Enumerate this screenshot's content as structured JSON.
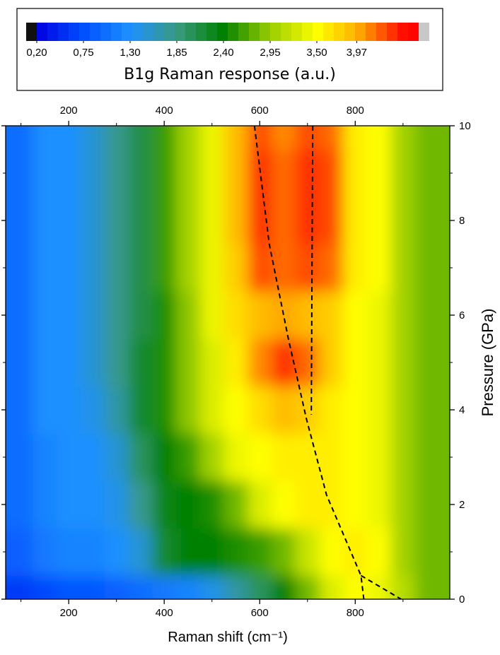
{
  "chart_data": {
    "type": "heatmap",
    "xlabel": "Raman shift (cm⁻¹)",
    "ylabel": "Pressure (GPa)",
    "colorbar_label": "B1g Raman response (a.u.)",
    "x": [
      100,
      150,
      200,
      250,
      300,
      350,
      400,
      450,
      500,
      550,
      600,
      650,
      700,
      750,
      800,
      850,
      900,
      950
    ],
    "y": [
      0,
      1,
      2,
      3,
      4,
      5,
      6,
      7,
      8,
      9,
      10
    ],
    "z": [
      [
        0.6,
        0.7,
        0.8,
        0.8,
        0.9,
        1.0,
        1.1,
        1.2,
        1.4,
        1.7,
        2.0,
        2.4,
        2.8,
        3.3,
        3.5,
        3.4,
        3.1,
        2.8
      ],
      [
        0.9,
        1.1,
        1.2,
        1.2,
        1.3,
        1.5,
        2.2,
        2.4,
        2.4,
        2.5,
        2.6,
        2.8,
        3.2,
        3.5,
        3.6,
        3.5,
        3.0,
        2.8
      ],
      [
        1.0,
        1.2,
        1.3,
        1.3,
        1.4,
        1.8,
        2.3,
        2.4,
        2.5,
        2.8,
        3.3,
        3.5,
        3.6,
        3.6,
        3.5,
        3.4,
        3.0,
        2.8
      ],
      [
        1.0,
        1.2,
        1.3,
        1.3,
        1.5,
        2.0,
        2.4,
        2.6,
        3.0,
        3.4,
        3.5,
        3.6,
        3.6,
        3.6,
        3.5,
        3.4,
        3.0,
        2.8
      ],
      [
        1.0,
        1.3,
        1.3,
        1.4,
        1.7,
        2.2,
        2.5,
        2.9,
        3.3,
        3.5,
        3.7,
        3.9,
        3.8,
        3.6,
        3.5,
        3.4,
        3.0,
        2.8
      ],
      [
        1.0,
        1.3,
        1.3,
        1.5,
        1.8,
        2.2,
        2.5,
        2.9,
        3.3,
        3.6,
        4.1,
        4.4,
        4.2,
        3.8,
        3.5,
        3.4,
        3.0,
        2.8
      ],
      [
        1.0,
        1.3,
        1.3,
        1.5,
        1.8,
        2.1,
        2.5,
        2.9,
        3.4,
        3.7,
        3.9,
        4.0,
        3.9,
        3.8,
        3.5,
        3.4,
        3.0,
        2.8
      ],
      [
        1.0,
        1.3,
        1.3,
        1.5,
        1.8,
        2.1,
        2.6,
        3.0,
        3.4,
        3.8,
        4.3,
        4.2,
        4.3,
        4.2,
        3.6,
        3.5,
        3.0,
        2.8
      ],
      [
        1.0,
        1.3,
        1.3,
        1.5,
        1.8,
        2.1,
        2.6,
        3.0,
        3.4,
        3.9,
        4.4,
        4.2,
        4.4,
        4.3,
        3.6,
        3.5,
        3.0,
        2.8
      ],
      [
        1.0,
        1.3,
        1.3,
        1.5,
        1.8,
        2.1,
        2.6,
        3.0,
        3.4,
        3.9,
        4.4,
        4.2,
        4.4,
        4.3,
        3.6,
        3.5,
        3.0,
        2.8
      ],
      [
        1.0,
        1.3,
        1.3,
        1.5,
        1.8,
        2.1,
        2.6,
        3.0,
        3.4,
        3.9,
        4.3,
        4.1,
        4.3,
        4.2,
        3.6,
        3.5,
        3.0,
        2.8
      ]
    ],
    "xlim": [
      68,
      998
    ],
    "ylim": [
      0,
      10
    ],
    "xticks": [
      200,
      400,
      600,
      800
    ],
    "xminor": [
      100,
      300,
      500,
      700,
      900
    ],
    "yticks": [
      0,
      2,
      4,
      6,
      8,
      10
    ],
    "yminor": [
      1,
      3,
      5,
      7,
      9
    ],
    "clim": [
      0.2,
      4.7
    ],
    "cticks": [
      {
        "value": 0.2,
        "label": "0,20"
      },
      {
        "value": 0.75,
        "label": "0,75"
      },
      {
        "value": 1.3,
        "label": "1,30"
      },
      {
        "value": 1.85,
        "label": "1,85"
      },
      {
        "value": 2.4,
        "label": "2,40"
      },
      {
        "value": 2.95,
        "label": "2,95"
      },
      {
        "value": 3.5,
        "label": "3,50"
      },
      {
        "value": 3.97,
        "label": "3,97"
      }
    ],
    "colorscale": [
      {
        "value": 0.2,
        "color": "#0000e0"
      },
      {
        "value": 0.75,
        "color": "#0050ff"
      },
      {
        "value": 1.3,
        "color": "#1e90ff"
      },
      {
        "value": 1.85,
        "color": "#3a9a80"
      },
      {
        "value": 2.4,
        "color": "#008000"
      },
      {
        "value": 2.95,
        "color": "#9acd00"
      },
      {
        "value": 3.5,
        "color": "#ffff00"
      },
      {
        "value": 3.97,
        "color": "#ffb000"
      },
      {
        "value": 4.5,
        "color": "#ff1000"
      },
      {
        "value": 4.7,
        "color": "#ff0000"
      }
    ],
    "under_color": "#111111",
    "over_color": "#c8c8c8",
    "lines": [
      {
        "x": [
          589,
          620,
          660,
          698,
          740,
          812,
          818
        ],
        "y": [
          10,
          7.5,
          5.5,
          3.8,
          2.2,
          0.5,
          0
        ],
        "color": "#000000",
        "linestyle": "dashed"
      },
      {
        "x": [
          812,
          896
        ],
        "y": [
          0.5,
          0
        ],
        "color": "#000000",
        "linestyle": "dashed"
      },
      {
        "x": [
          711,
          708
        ],
        "y": [
          10,
          3.9
        ],
        "color": "#000000",
        "linestyle": "dashed"
      }
    ]
  }
}
